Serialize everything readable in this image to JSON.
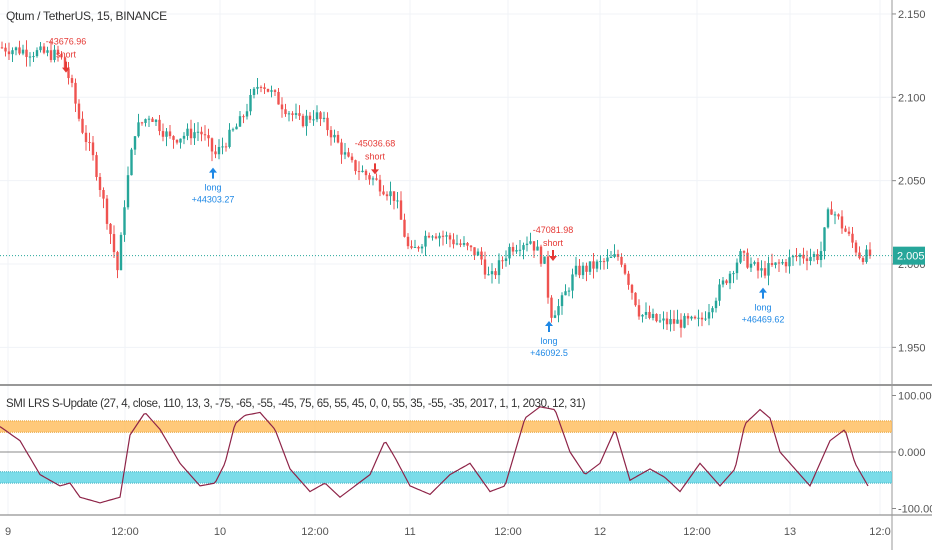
{
  "header": {
    "symbol_title": "Qtum / TetherUS, 15, BINANCE"
  },
  "indicator": {
    "title": "SMI LRS S-Update (27, 4, close, 110, 13, 3, -75, -65, -55, -45, 75, 65, 55, 45, 0, 0, 55, 35, -55, -35, 2017, 1, 1, 2030, 12, 31)"
  },
  "colors": {
    "up": "#26a69a",
    "down": "#ef5350",
    "smi": "#8e2448",
    "orange_band": "#ffb74d",
    "blue_band": "#4dd0e1",
    "last_price_bg": "#26a69a"
  },
  "chart_data": [
    {
      "type": "candlestick",
      "title": "Qtum / TetherUS, 15, BINANCE",
      "ylim": [
        1.935,
        2.158
      ],
      "y_ticks": [
        "2.150",
        "2.100",
        "2.050",
        "2.000",
        "1.950"
      ],
      "last_price": "2.005",
      "x_ticks": [
        "9",
        "12:00",
        "10",
        "12:00",
        "11",
        "12:00",
        "12",
        "12:00",
        "13",
        "12:0"
      ],
      "close_path": [
        [
          0,
          2.13
        ],
        [
          60,
          2.125
        ],
        [
          70,
          2.11
        ],
        [
          80,
          2.085
        ],
        [
          95,
          2.06
        ],
        [
          110,
          2.02
        ],
        [
          118,
          1.995
        ],
        [
          125,
          2.04
        ],
        [
          135,
          2.08
        ],
        [
          150,
          2.09
        ],
        [
          170,
          2.075
        ],
        [
          200,
          2.08
        ],
        [
          215,
          2.065
        ],
        [
          240,
          2.085
        ],
        [
          260,
          2.11
        ],
        [
          275,
          2.1
        ],
        [
          300,
          2.085
        ],
        [
          315,
          2.09
        ],
        [
          330,
          2.08
        ],
        [
          350,
          2.06
        ],
        [
          375,
          2.05
        ],
        [
          395,
          2.04
        ],
        [
          410,
          2.005
        ],
        [
          430,
          2.02
        ],
        [
          450,
          2.015
        ],
        [
          480,
          2.005
        ],
        [
          490,
          1.99
        ],
        [
          510,
          2.01
        ],
        [
          530,
          2.015
        ],
        [
          545,
          2.0
        ],
        [
          550,
          1.97
        ],
        [
          560,
          1.975
        ],
        [
          575,
          1.995
        ],
        [
          600,
          2.0
        ],
        [
          620,
          2.005
        ],
        [
          640,
          1.97
        ],
        [
          660,
          1.965
        ],
        [
          700,
          1.965
        ],
        [
          720,
          1.985
        ],
        [
          740,
          2.005
        ],
        [
          760,
          1.995
        ],
        [
          800,
          2.005
        ],
        [
          820,
          2.005
        ],
        [
          830,
          2.035
        ],
        [
          845,
          2.02
        ],
        [
          860,
          2.005
        ],
        [
          870,
          2.005
        ]
      ],
      "signals": [
        {
          "bar": 66,
          "kind": "short",
          "label": "short",
          "value": "-43676.96",
          "price": 2.113
        },
        {
          "bar": 213,
          "kind": "long",
          "label": "long",
          "value": "+44303.27",
          "price": 2.062
        },
        {
          "bar": 375,
          "kind": "short",
          "label": "short",
          "value": "-45036.68",
          "price": 2.052
        },
        {
          "bar": 553,
          "kind": "short",
          "label": "short",
          "value": "-47081.98",
          "price": 2.0
        },
        {
          "bar": 549,
          "kind": "long",
          "label": "long",
          "value": "+46092.5",
          "price": 1.97
        },
        {
          "bar": 763,
          "kind": "long",
          "label": "long",
          "value": "+46469.62",
          "price": 1.99
        }
      ]
    },
    {
      "type": "line",
      "title": "SMI LRS S-Update",
      "ylim": [
        -100,
        100
      ],
      "y_ticks": [
        "100.000",
        "0.000",
        "-100.000"
      ],
      "bands": [
        {
          "from": 35,
          "to": 55,
          "color": "orange"
        },
        {
          "from": -55,
          "to": -35,
          "color": "blue"
        }
      ],
      "smi_path": [
        [
          0,
          45
        ],
        [
          20,
          20
        ],
        [
          40,
          -40
        ],
        [
          60,
          -60
        ],
        [
          70,
          -55
        ],
        [
          80,
          -80
        ],
        [
          100,
          -90
        ],
        [
          120,
          -80
        ],
        [
          130,
          30
        ],
        [
          145,
          70
        ],
        [
          160,
          40
        ],
        [
          180,
          -20
        ],
        [
          200,
          -60
        ],
        [
          215,
          -55
        ],
        [
          225,
          -20
        ],
        [
          235,
          50
        ],
        [
          245,
          65
        ],
        [
          260,
          70
        ],
        [
          275,
          40
        ],
        [
          290,
          -30
        ],
        [
          310,
          -70
        ],
        [
          325,
          -55
        ],
        [
          340,
          -80
        ],
        [
          355,
          -60
        ],
        [
          370,
          -40
        ],
        [
          385,
          20
        ],
        [
          395,
          -10
        ],
        [
          410,
          -60
        ],
        [
          430,
          -75
        ],
        [
          450,
          -40
        ],
        [
          470,
          -20
        ],
        [
          490,
          -70
        ],
        [
          505,
          -60
        ],
        [
          515,
          0
        ],
        [
          525,
          60
        ],
        [
          540,
          80
        ],
        [
          555,
          75
        ],
        [
          570,
          0
        ],
        [
          585,
          -40
        ],
        [
          600,
          -20
        ],
        [
          615,
          40
        ],
        [
          630,
          -50
        ],
        [
          650,
          -30
        ],
        [
          665,
          -45
        ],
        [
          680,
          -70
        ],
        [
          700,
          -20
        ],
        [
          720,
          -60
        ],
        [
          735,
          -30
        ],
        [
          745,
          50
        ],
        [
          760,
          75
        ],
        [
          770,
          60
        ],
        [
          780,
          0
        ],
        [
          795,
          -30
        ],
        [
          810,
          -60
        ],
        [
          830,
          20
        ],
        [
          845,
          40
        ],
        [
          855,
          -20
        ],
        [
          868,
          -60
        ]
      ]
    }
  ]
}
